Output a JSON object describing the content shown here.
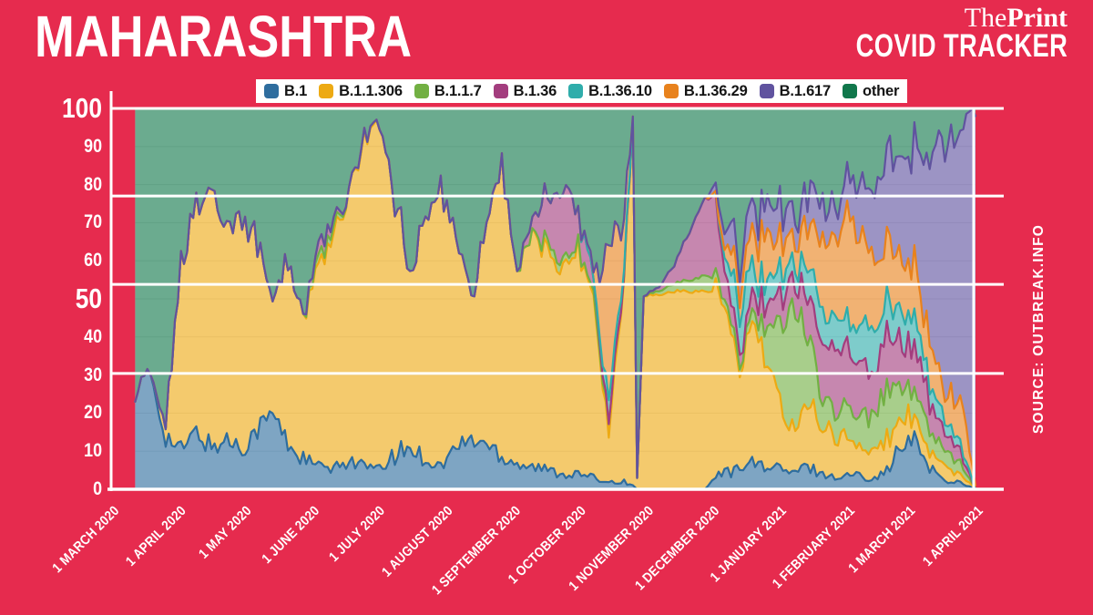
{
  "page": {
    "background_color": "#e62b4e",
    "text_color": "#ffffff"
  },
  "header": {
    "title": "MAHARASHTRA",
    "brand_the": "The",
    "brand_print": "Print",
    "subtitle": "COVID TRACKER"
  },
  "source_note": "SOURCE: OUTBREAK.INFO",
  "chart_data": {
    "type": "area",
    "stacked": true,
    "percent_of_total": true,
    "title": "",
    "xlabel": "",
    "ylabel": "",
    "ylim": [
      0,
      100
    ],
    "y_ticks": [
      0,
      10,
      20,
      30,
      40,
      50,
      60,
      70,
      80,
      90,
      100
    ],
    "y_ticks_emphasized": [
      50,
      100
    ],
    "gridline_values": [
      30.4,
      53.8,
      77,
      100
    ],
    "legend_position": "top",
    "x_tick_labels": [
      {
        "label": "1 MARCH 2020",
        "date": "2020-03-01"
      },
      {
        "label": "1 APRIL 2020",
        "date": "2020-04-01"
      },
      {
        "label": "1 MAY 2020",
        "date": "2020-05-01"
      },
      {
        "label": "1 JUNE 2020",
        "date": "2020-06-01"
      },
      {
        "label": "1 JULY 2020",
        "date": "2020-07-01"
      },
      {
        "label": "1 AUGUST 2020",
        "date": "2020-08-01"
      },
      {
        "label": "1 SEPTEMBER 2020",
        "date": "2020-09-01"
      },
      {
        "label": "1 OCTOBER 2020",
        "date": "2020-10-01"
      },
      {
        "label": "1 NOVEMBER 2020",
        "date": "2020-11-01"
      },
      {
        "label": "1 DECEMBER 2020",
        "date": "2020-12-01"
      },
      {
        "label": "1 JANUARY 2021",
        "date": "2021-01-01"
      },
      {
        "label": "1 FEBRUARY 2021",
        "date": "2021-02-01"
      },
      {
        "label": "1 MARCH 2021",
        "date": "2021-03-01"
      },
      {
        "label": "1 APRIL 2021",
        "date": "2021-04-01"
      }
    ],
    "dates": [
      "2020-03-12",
      "2020-03-19",
      "2020-03-26",
      "2020-04-02",
      "2020-04-09",
      "2020-04-16",
      "2020-04-23",
      "2020-04-30",
      "2020-05-07",
      "2020-05-14",
      "2020-05-21",
      "2020-05-28",
      "2020-06-04",
      "2020-06-11",
      "2020-06-18",
      "2020-06-25",
      "2020-07-02",
      "2020-07-09",
      "2020-07-16",
      "2020-07-23",
      "2020-07-30",
      "2020-08-06",
      "2020-08-13",
      "2020-08-20",
      "2020-08-27",
      "2020-09-03",
      "2020-09-10",
      "2020-09-17",
      "2020-09-24",
      "2020-10-01",
      "2020-10-08",
      "2020-10-15",
      "2020-10-22",
      "2020-10-26",
      "2020-10-28",
      "2020-10-31",
      "2020-11-07",
      "2020-11-14",
      "2020-11-21",
      "2020-11-28",
      "2020-12-03",
      "2020-12-07",
      "2020-12-10",
      "2020-12-14",
      "2020-12-17",
      "2020-12-21",
      "2020-12-24",
      "2020-12-28",
      "2020-12-31",
      "2021-01-07",
      "2021-01-14",
      "2021-01-21",
      "2021-01-28",
      "2021-02-04",
      "2021-02-11",
      "2021-02-18",
      "2021-02-25",
      "2021-03-04",
      "2021-03-11",
      "2021-03-18",
      "2021-03-25",
      "2021-04-01"
    ],
    "other_is_remainder": true,
    "series": [
      {
        "name": "B.1",
        "color": "#2e6d9e",
        "values": [
          26,
          30,
          14,
          10,
          15,
          11,
          13,
          11,
          16,
          20,
          12,
          8,
          6,
          5,
          8,
          6,
          5,
          9,
          11,
          8,
          6,
          11,
          13,
          12,
          9,
          7,
          6,
          5,
          4,
          4,
          3,
          2,
          2,
          1,
          0,
          0,
          0,
          0,
          0,
          0,
          3,
          5,
          4,
          6,
          8,
          6,
          7,
          5,
          6,
          4,
          6,
          4,
          3,
          4,
          3,
          4,
          10,
          13,
          6,
          2,
          2,
          0
        ]
      },
      {
        "name": "B.1.1.306",
        "color": "#edaa13",
        "values": [
          0,
          0,
          4,
          48,
          60,
          68,
          57,
          62,
          50,
          28,
          50,
          38,
          52,
          60,
          70,
          86,
          89,
          68,
          45,
          64,
          73,
          56,
          38,
          58,
          78,
          51,
          60,
          57,
          55,
          59,
          48,
          13,
          55,
          96,
          3,
          51,
          51,
          52,
          52,
          52,
          50,
          42,
          35,
          25,
          33,
          36,
          30,
          25,
          18,
          12,
          16,
          13,
          11,
          9,
          7,
          8,
          7,
          6,
          5,
          4,
          2,
          0
        ]
      },
      {
        "name": "B.1.1.7",
        "color": "#72b043",
        "values": [
          0,
          0,
          0,
          0,
          0,
          0,
          0,
          0,
          0,
          0,
          0,
          0,
          2,
          2,
          0,
          1,
          0,
          0,
          0,
          0,
          0,
          0,
          0,
          0,
          0,
          0,
          0,
          2,
          2,
          1,
          1,
          3,
          1,
          0,
          0,
          0,
          1,
          2,
          3,
          4,
          3,
          2,
          2,
          2,
          2,
          3,
          5,
          10,
          18,
          34,
          18,
          9,
          6,
          8,
          10,
          11,
          9,
          7,
          6,
          4,
          3,
          0
        ]
      },
      {
        "name": "B.1.36",
        "color": "#a33d7e",
        "values": [
          0,
          0,
          0,
          0,
          0,
          0,
          0,
          0,
          0,
          0,
          0,
          0,
          3,
          2,
          0,
          0,
          0,
          0,
          0,
          0,
          0,
          0,
          0,
          0,
          0,
          0,
          4,
          13,
          19,
          10,
          4,
          0,
          0,
          0,
          0,
          0,
          1,
          5,
          13,
          20,
          19,
          10,
          6,
          3,
          3,
          5,
          6,
          7,
          8,
          8,
          10,
          14,
          17,
          14,
          12,
          14,
          12,
          10,
          8,
          5,
          3,
          0
        ]
      },
      {
        "name": "B.1.36.10",
        "color": "#2fadab",
        "values": [
          0,
          0,
          0,
          0,
          0,
          0,
          0,
          0,
          0,
          0,
          0,
          0,
          0,
          0,
          0,
          0,
          0,
          0,
          0,
          0,
          0,
          0,
          0,
          0,
          0,
          0,
          0,
          0,
          0,
          0,
          0,
          5,
          2,
          0,
          0,
          0,
          0,
          0,
          0,
          0,
          1,
          4,
          8,
          9,
          10,
          7,
          6,
          8,
          6,
          5,
          7,
          8,
          9,
          8,
          10,
          8,
          9,
          7,
          5,
          4,
          2,
          0
        ]
      },
      {
        "name": "B.1.36.29",
        "color": "#e8821d",
        "values": [
          0,
          0,
          0,
          0,
          0,
          0,
          0,
          0,
          0,
          0,
          0,
          0,
          0,
          0,
          0,
          0,
          0,
          0,
          0,
          0,
          0,
          0,
          0,
          0,
          0,
          0,
          0,
          0,
          0,
          0,
          2,
          38,
          14,
          0,
          0,
          0,
          0,
          0,
          0,
          0,
          0,
          2,
          6,
          5,
          8,
          11,
          13,
          10,
          8,
          6,
          11,
          19,
          22,
          27,
          21,
          16,
          13,
          14,
          10,
          8,
          12,
          1
        ]
      },
      {
        "name": "B.1.617",
        "color": "#60539f",
        "values": [
          0,
          0,
          0,
          0,
          0,
          0,
          0,
          0,
          0,
          0,
          0,
          0,
          0,
          0,
          0,
          0,
          0,
          0,
          0,
          0,
          0,
          0,
          0,
          0,
          0,
          0,
          0,
          0,
          0,
          0,
          0,
          0,
          0,
          0,
          0,
          0,
          0,
          0,
          0,
          0,
          2,
          4,
          7,
          5,
          9,
          7,
          8,
          8,
          9,
          6,
          9,
          10,
          10,
          13,
          16,
          22,
          25,
          30,
          48,
          65,
          71,
          97
        ]
      },
      {
        "name": "other",
        "color": "#10774b",
        "values": [
          74,
          70,
          82,
          42,
          25,
          21,
          30,
          27,
          34,
          52,
          38,
          54,
          37,
          31,
          22,
          7,
          6,
          23,
          44,
          28,
          21,
          33,
          49,
          30,
          13,
          42,
          30,
          23,
          20,
          26,
          42,
          39,
          26,
          3,
          97,
          49,
          47,
          41,
          32,
          24,
          22,
          31,
          32,
          45,
          27,
          25,
          25,
          27,
          27,
          25,
          23,
          23,
          22,
          17,
          21,
          17,
          15,
          13,
          12,
          8,
          5,
          2
        ]
      }
    ]
  }
}
